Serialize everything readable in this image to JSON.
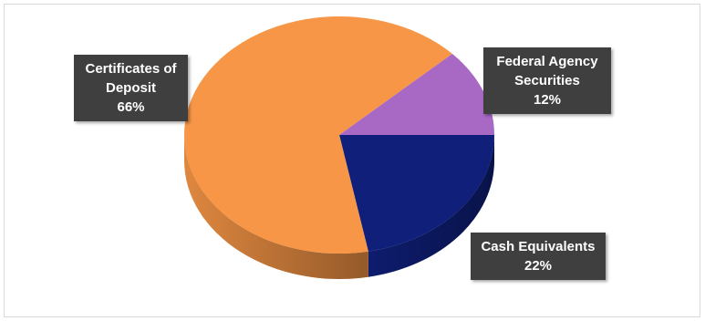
{
  "chart_data": {
    "type": "pie",
    "slices": [
      {
        "label": "Certificates of Deposit",
        "label_lines": [
          "Certificates of",
          "Deposit"
        ],
        "value": 66,
        "value_label": "66%",
        "color": "#f79646"
      },
      {
        "label": "Federal Agency Securities",
        "label_lines": [
          "Federal Agency",
          "Securities"
        ],
        "value": 12,
        "value_label": "12%",
        "color": "#a769c4"
      },
      {
        "label": "Cash Equivalents",
        "label_lines": [
          "Cash Equivalents"
        ],
        "value": 22,
        "value_label": "22%",
        "color": "#0f1f7a"
      }
    ],
    "style": "3d-tilted",
    "legend": "none",
    "data_labels": "callouts"
  }
}
